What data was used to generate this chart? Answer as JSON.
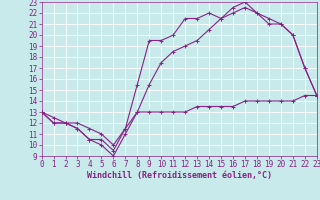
{
  "xlabel": "Windchill (Refroidissement éolien,°C)",
  "xlim": [
    0,
    23
  ],
  "ylim": [
    9,
    23
  ],
  "xticks": [
    0,
    1,
    2,
    3,
    4,
    5,
    6,
    7,
    8,
    9,
    10,
    11,
    12,
    13,
    14,
    15,
    16,
    17,
    18,
    19,
    20,
    21,
    22,
    23
  ],
  "yticks": [
    9,
    10,
    11,
    12,
    13,
    14,
    15,
    16,
    17,
    18,
    19,
    20,
    21,
    22,
    23
  ],
  "bg_color": "#c8eaea",
  "grid_color": "#ffffff",
  "line_color": "#882288",
  "line1_x": [
    0,
    1,
    2,
    3,
    4,
    5,
    6,
    7,
    8,
    9,
    10,
    11,
    12,
    13,
    14,
    15,
    16,
    17,
    18,
    19,
    20,
    21,
    22,
    23
  ],
  "line1_y": [
    13,
    12,
    12,
    11.5,
    10.5,
    10.5,
    9.5,
    11.5,
    15.5,
    19.5,
    19.5,
    20,
    21.5,
    21.5,
    22,
    21.5,
    22.5,
    23,
    22,
    21,
    21,
    20,
    17,
    14.5
  ],
  "line2_x": [
    0,
    1,
    2,
    3,
    4,
    5,
    6,
    7,
    8,
    9,
    10,
    11,
    12,
    13,
    14,
    15,
    16,
    17,
    18,
    19,
    20,
    21,
    22,
    23
  ],
  "line2_y": [
    13,
    12,
    12,
    11.5,
    10.5,
    10,
    9,
    11,
    13,
    15.5,
    17.5,
    18.5,
    19,
    19.5,
    20.5,
    21.5,
    22,
    22.5,
    22,
    21.5,
    21,
    20,
    17,
    14.5
  ],
  "line3_x": [
    0,
    1,
    2,
    3,
    4,
    5,
    6,
    7,
    8,
    9,
    10,
    11,
    12,
    13,
    14,
    15,
    16,
    17,
    18,
    19,
    20,
    21,
    22,
    23
  ],
  "line3_y": [
    13,
    12.5,
    12,
    12,
    11.5,
    11,
    10,
    11.5,
    13,
    13,
    13,
    13,
    13,
    13.5,
    13.5,
    13.5,
    13.5,
    14,
    14,
    14,
    14,
    14,
    14.5,
    14.5
  ]
}
